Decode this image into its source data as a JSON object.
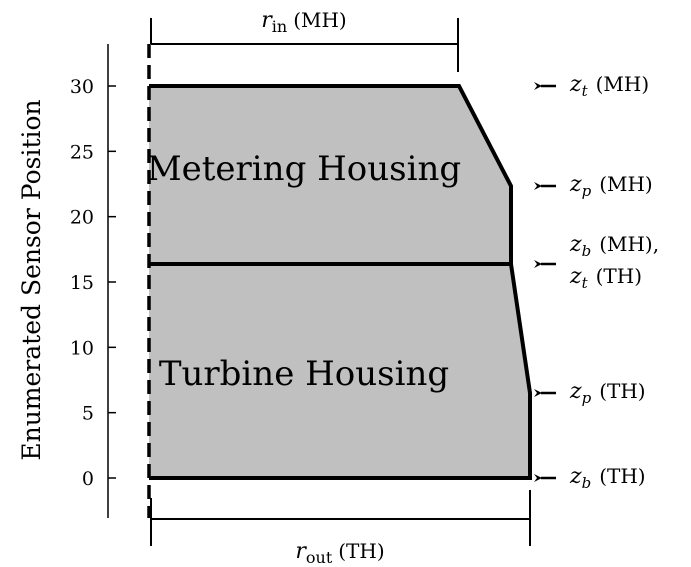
{
  "axis": {
    "ylabel": "Enumerated Sensor Position",
    "ticks": [
      {
        "value": 0,
        "label": "0"
      },
      {
        "value": 5,
        "label": "5"
      },
      {
        "value": 10,
        "label": "10"
      },
      {
        "value": 15,
        "label": "15"
      },
      {
        "value": 20,
        "label": "20"
      },
      {
        "value": 25,
        "label": "25"
      },
      {
        "value": 30,
        "label": "30"
      }
    ]
  },
  "regions": {
    "metering": "Metering Housing",
    "turbine": "Turbine Housing"
  },
  "dimensions": {
    "r_in": {
      "symbol": "r",
      "sub": "in",
      "tag": "(MH)"
    },
    "r_out": {
      "symbol": "r",
      "sub": "out",
      "tag": "(TH)"
    }
  },
  "annotations": {
    "zt_mh": {
      "symbol": "z",
      "sub": "t",
      "tag": "(MH)"
    },
    "zp_mh": {
      "symbol": "z",
      "sub": "p",
      "tag": "(MH)"
    },
    "zb_mh": {
      "symbol": "z",
      "sub": "b",
      "tag": "(MH),"
    },
    "zt_th": {
      "symbol": "z",
      "sub": "t",
      "tag": "(TH)"
    },
    "zp_th": {
      "symbol": "z",
      "sub": "p",
      "tag": "(TH)"
    },
    "zb_th": {
      "symbol": "z",
      "sub": "b",
      "tag": "(TH)"
    }
  },
  "colors": {
    "fill": "#c0c0c0",
    "stroke": "#000000"
  }
}
